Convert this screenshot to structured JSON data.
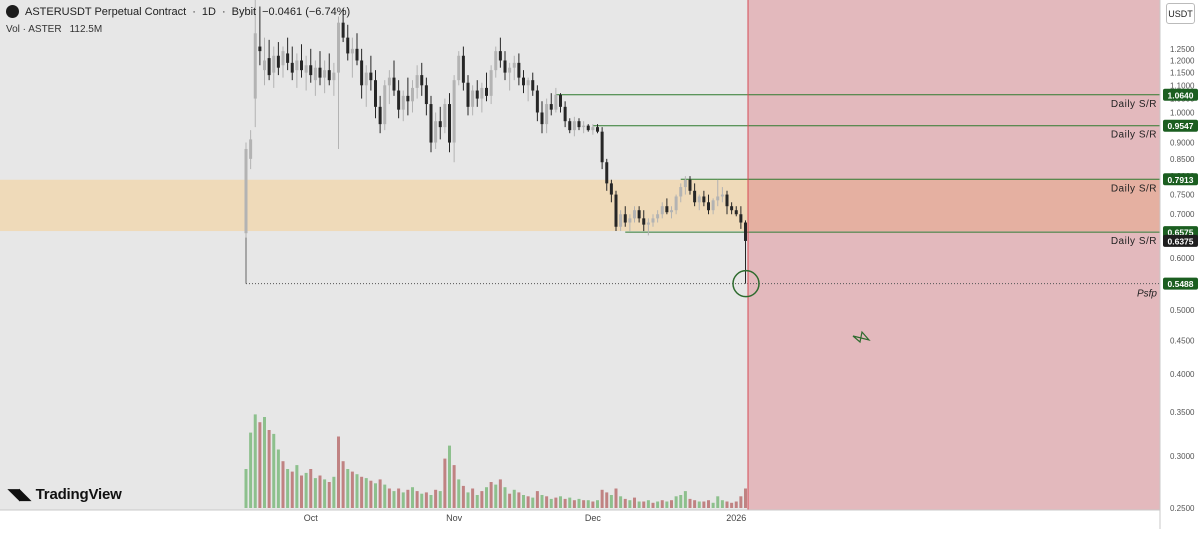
{
  "header": {
    "symbol": "ASTERUSDT Perpetual Contract",
    "interval": "1D",
    "exchange": "Bybit",
    "separator": "·",
    "change": "−0.0461 (−6.74%)"
  },
  "volume_legend": {
    "label": "Vol · ASTER",
    "value": "112.5M"
  },
  "brand": "TradingView",
  "currency_button": "USDT",
  "colors": {
    "up": "#b3b3b3",
    "down": "#262626",
    "vol_up": "#8dc08d",
    "vol_down": "#c08282",
    "zone_fill": "#f0d8b4",
    "future_fill": "#e3b9bd",
    "sr_line": "#2f7a2f",
    "label_bg": "#1b5e20",
    "current_label_bg": "#1e1e1e"
  },
  "chart_data": {
    "type": "candlestick",
    "yscale": "log",
    "ylim": [
      0.25,
      1.4
    ],
    "y_ticks": [
      "1.2500",
      "1.2000",
      "1.1500",
      "1.1000",
      "1.0500",
      "1.0000",
      "0.9500",
      "0.9000",
      "0.8500",
      "0.8000",
      "0.7500",
      "0.7000",
      "0.6500",
      "0.6000",
      "0.5500",
      "0.5000",
      "0.4500",
      "0.4000",
      "0.3500",
      "0.3000",
      "0.2500"
    ],
    "x_ticks": [
      "Oct",
      "Nov",
      "Dec",
      "2026"
    ],
    "x_tick_index": [
      14,
      45,
      75,
      106
    ],
    "candles": [
      [
        0.655,
        0.9,
        0.645,
        0.88
      ],
      [
        0.85,
        0.94,
        0.82,
        0.91
      ],
      [
        1.05,
        1.6,
        0.95,
        1.32
      ],
      [
        1.26,
        1.45,
        1.18,
        1.24
      ],
      [
        1.16,
        1.3,
        1.1,
        1.2
      ],
      [
        1.21,
        1.29,
        1.12,
        1.14
      ],
      [
        1.15,
        1.26,
        1.09,
        1.22
      ],
      [
        1.22,
        1.28,
        1.14,
        1.17
      ],
      [
        1.18,
        1.26,
        1.13,
        1.24
      ],
      [
        1.23,
        1.3,
        1.16,
        1.19
      ],
      [
        1.19,
        1.26,
        1.12,
        1.15
      ],
      [
        1.16,
        1.23,
        1.09,
        1.2
      ],
      [
        1.2,
        1.27,
        1.13,
        1.16
      ],
      [
        1.15,
        1.22,
        1.08,
        1.18
      ],
      [
        1.18,
        1.25,
        1.11,
        1.14
      ],
      [
        1.12,
        1.2,
        1.06,
        1.17
      ],
      [
        1.17,
        1.24,
        1.1,
        1.13
      ],
      [
        1.13,
        1.2,
        1.07,
        1.16
      ],
      [
        1.16,
        1.23,
        1.1,
        1.12
      ],
      [
        1.12,
        1.19,
        1.06,
        1.15
      ],
      [
        1.15,
        1.4,
        0.88,
        1.37
      ],
      [
        1.37,
        1.44,
        1.28,
        1.3
      ],
      [
        1.3,
        1.36,
        1.2,
        1.23
      ],
      [
        1.23,
        1.3,
        1.13,
        1.25
      ],
      [
        1.25,
        1.32,
        1.18,
        1.2
      ],
      [
        1.2,
        1.25,
        1.05,
        1.1
      ],
      [
        1.1,
        1.18,
        1.02,
        1.15
      ],
      [
        1.15,
        1.22,
        1.08,
        1.12
      ],
      [
        1.12,
        1.16,
        0.98,
        1.02
      ],
      [
        1.02,
        1.06,
        0.93,
        0.96
      ],
      [
        0.96,
        1.12,
        0.94,
        1.1
      ],
      [
        1.1,
        1.16,
        1.03,
        1.13
      ],
      [
        1.13,
        1.2,
        1.06,
        1.08
      ],
      [
        1.08,
        1.12,
        0.98,
        1.01
      ],
      [
        1.01,
        1.08,
        0.97,
        1.06
      ],
      [
        1.06,
        1.13,
        0.99,
        1.04
      ],
      [
        1.04,
        1.12,
        1.0,
        1.09
      ],
      [
        1.09,
        1.18,
        1.05,
        1.14
      ],
      [
        1.14,
        1.19,
        1.06,
        1.1
      ],
      [
        1.1,
        1.13,
        0.99,
        1.03
      ],
      [
        1.03,
        1.06,
        0.87,
        0.9
      ],
      [
        0.9,
        1.0,
        0.88,
        0.97
      ],
      [
        0.97,
        1.02,
        0.91,
        0.95
      ],
      [
        0.95,
        1.05,
        0.93,
        1.03
      ],
      [
        1.03,
        1.07,
        0.87,
        0.9
      ],
      [
        0.9,
        1.14,
        0.84,
        1.12
      ],
      [
        1.12,
        1.24,
        1.1,
        1.22
      ],
      [
        1.22,
        1.26,
        1.08,
        1.11
      ],
      [
        1.11,
        1.14,
        0.99,
        1.02
      ],
      [
        1.02,
        1.1,
        0.99,
        1.08
      ],
      [
        1.08,
        1.12,
        1.02,
        1.05
      ],
      [
        1.05,
        1.11,
        1.0,
        1.09
      ],
      [
        1.09,
        1.15,
        1.04,
        1.06
      ],
      [
        1.06,
        1.18,
        1.03,
        1.16
      ],
      [
        1.16,
        1.26,
        1.13,
        1.24
      ],
      [
        1.24,
        1.3,
        1.17,
        1.2
      ],
      [
        1.2,
        1.24,
        1.12,
        1.15
      ],
      [
        1.15,
        1.19,
        1.08,
        1.17
      ],
      [
        1.17,
        1.22,
        1.12,
        1.19
      ],
      [
        1.19,
        1.23,
        1.1,
        1.13
      ],
      [
        1.13,
        1.16,
        1.07,
        1.1
      ],
      [
        1.1,
        1.13,
        1.04,
        1.12
      ],
      [
        1.12,
        1.15,
        1.06,
        1.08
      ],
      [
        1.08,
        1.1,
        0.97,
        1.0
      ],
      [
        1.0,
        1.04,
        0.93,
        0.96
      ],
      [
        0.96,
        1.05,
        0.93,
        1.03
      ],
      [
        1.03,
        1.07,
        0.99,
        1.01
      ],
      [
        1.01,
        1.09,
        1.0,
        1.064
      ],
      [
        1.064,
        1.07,
        1.0,
        1.02
      ],
      [
        1.02,
        1.04,
        0.95,
        0.97
      ],
      [
        0.97,
        0.98,
        0.93,
        0.94
      ],
      [
        0.94,
        0.985,
        0.92,
        0.97
      ],
      [
        0.97,
        0.98,
        0.94,
        0.95
      ],
      [
        0.95,
        0.97,
        0.93,
        0.955
      ],
      [
        0.955,
        0.96,
        0.935,
        0.94
      ],
      [
        0.94,
        0.96,
        0.925,
        0.95
      ],
      [
        0.95,
        0.96,
        0.93,
        0.935
      ],
      [
        0.935,
        0.95,
        0.82,
        0.84
      ],
      [
        0.84,
        0.85,
        0.76,
        0.78
      ],
      [
        0.78,
        0.79,
        0.73,
        0.75
      ],
      [
        0.75,
        0.76,
        0.66,
        0.67
      ],
      [
        0.67,
        0.71,
        0.66,
        0.7
      ],
      [
        0.7,
        0.72,
        0.67,
        0.68
      ],
      [
        0.68,
        0.7,
        0.66,
        0.69
      ],
      [
        0.69,
        0.72,
        0.68,
        0.71
      ],
      [
        0.71,
        0.72,
        0.68,
        0.69
      ],
      [
        0.69,
        0.71,
        0.66,
        0.675
      ],
      [
        0.675,
        0.69,
        0.65,
        0.68
      ],
      [
        0.68,
        0.7,
        0.67,
        0.69
      ],
      [
        0.69,
        0.71,
        0.68,
        0.7
      ],
      [
        0.7,
        0.73,
        0.69,
        0.72
      ],
      [
        0.72,
        0.74,
        0.7,
        0.705
      ],
      [
        0.705,
        0.72,
        0.69,
        0.71
      ],
      [
        0.71,
        0.75,
        0.7,
        0.745
      ],
      [
        0.745,
        0.78,
        0.73,
        0.77
      ],
      [
        0.77,
        0.8,
        0.75,
        0.79
      ],
      [
        0.79,
        0.8,
        0.75,
        0.76
      ],
      [
        0.76,
        0.78,
        0.72,
        0.73
      ],
      [
        0.73,
        0.75,
        0.71,
        0.745
      ],
      [
        0.745,
        0.76,
        0.72,
        0.73
      ],
      [
        0.73,
        0.75,
        0.7,
        0.71
      ],
      [
        0.71,
        0.74,
        0.7,
        0.735
      ],
      [
        0.735,
        0.79,
        0.72,
        0.745
      ],
      [
        0.745,
        0.77,
        0.73,
        0.75
      ],
      [
        0.75,
        0.76,
        0.7,
        0.72
      ],
      [
        0.72,
        0.73,
        0.7,
        0.71
      ],
      [
        0.71,
        0.72,
        0.695,
        0.7
      ],
      [
        0.7,
        0.72,
        0.665,
        0.68
      ],
      [
        0.68,
        0.685,
        0.549,
        0.6375
      ]
    ],
    "volume": [
      [
        0.3,
        1
      ],
      [
        0.58,
        1
      ],
      [
        0.72,
        1
      ],
      [
        0.66,
        0
      ],
      [
        0.7,
        1
      ],
      [
        0.6,
        0
      ],
      [
        0.57,
        1
      ],
      [
        0.45,
        1
      ],
      [
        0.36,
        0
      ],
      [
        0.3,
        1
      ],
      [
        0.28,
        0
      ],
      [
        0.33,
        1
      ],
      [
        0.25,
        0
      ],
      [
        0.27,
        1
      ],
      [
        0.3,
        0
      ],
      [
        0.23,
        1
      ],
      [
        0.25,
        0
      ],
      [
        0.22,
        1
      ],
      [
        0.2,
        0
      ],
      [
        0.24,
        1
      ],
      [
        0.55,
        0
      ],
      [
        0.36,
        0
      ],
      [
        0.3,
        1
      ],
      [
        0.28,
        0
      ],
      [
        0.26,
        1
      ],
      [
        0.24,
        0
      ],
      [
        0.23,
        1
      ],
      [
        0.21,
        0
      ],
      [
        0.19,
        1
      ],
      [
        0.22,
        0
      ],
      [
        0.18,
        1
      ],
      [
        0.15,
        0
      ],
      [
        0.13,
        1
      ],
      [
        0.15,
        0
      ],
      [
        0.12,
        1
      ],
      [
        0.14,
        0
      ],
      [
        0.16,
        1
      ],
      [
        0.13,
        0
      ],
      [
        0.11,
        1
      ],
      [
        0.12,
        0
      ],
      [
        0.1,
        1
      ],
      [
        0.14,
        0
      ],
      [
        0.13,
        1
      ],
      [
        0.38,
        0
      ],
      [
        0.48,
        1
      ],
      [
        0.33,
        0
      ],
      [
        0.22,
        1
      ],
      [
        0.17,
        0
      ],
      [
        0.12,
        1
      ],
      [
        0.15,
        0
      ],
      [
        0.1,
        1
      ],
      [
        0.13,
        0
      ],
      [
        0.16,
        1
      ],
      [
        0.2,
        0
      ],
      [
        0.18,
        1
      ],
      [
        0.22,
        0
      ],
      [
        0.16,
        1
      ],
      [
        0.11,
        0
      ],
      [
        0.14,
        1
      ],
      [
        0.12,
        0
      ],
      [
        0.1,
        1
      ],
      [
        0.09,
        0
      ],
      [
        0.08,
        1
      ],
      [
        0.13,
        0
      ],
      [
        0.1,
        1
      ],
      [
        0.09,
        0
      ],
      [
        0.07,
        1
      ],
      [
        0.08,
        0
      ],
      [
        0.09,
        1
      ],
      [
        0.07,
        0
      ],
      [
        0.08,
        1
      ],
      [
        0.06,
        0
      ],
      [
        0.07,
        1
      ],
      [
        0.06,
        0
      ],
      [
        0.06,
        1
      ],
      [
        0.05,
        0
      ],
      [
        0.06,
        1
      ],
      [
        0.14,
        0
      ],
      [
        0.12,
        0
      ],
      [
        0.1,
        1
      ],
      [
        0.15,
        0
      ],
      [
        0.09,
        1
      ],
      [
        0.07,
        0
      ],
      [
        0.06,
        1
      ],
      [
        0.08,
        0
      ],
      [
        0.05,
        1
      ],
      [
        0.05,
        0
      ],
      [
        0.06,
        1
      ],
      [
        0.04,
        0
      ],
      [
        0.05,
        1
      ],
      [
        0.06,
        0
      ],
      [
        0.05,
        1
      ],
      [
        0.06,
        0
      ],
      [
        0.09,
        1
      ],
      [
        0.1,
        1
      ],
      [
        0.13,
        1
      ],
      [
        0.07,
        0
      ],
      [
        0.06,
        0
      ],
      [
        0.05,
        1
      ],
      [
        0.05,
        0
      ],
      [
        0.06,
        0
      ],
      [
        0.04,
        1
      ],
      [
        0.09,
        1
      ],
      [
        0.06,
        1
      ],
      [
        0.05,
        0
      ],
      [
        0.04,
        0
      ],
      [
        0.05,
        0
      ],
      [
        0.09,
        0
      ],
      [
        0.15,
        0
      ]
    ],
    "zone": [
      0.66,
      0.79
    ],
    "levels": [
      {
        "value": 1.064,
        "price_label": "1.0640",
        "text": "Daily S/R",
        "start_index": 67
      },
      {
        "value": 0.9547,
        "price_label": "0.9547",
        "text": "Daily S/R",
        "start_index": 75
      },
      {
        "value": 0.7913,
        "price_label": "0.7913",
        "text": "Daily S/R",
        "start_index": 94
      },
      {
        "value": 0.6575,
        "price_label": "0.6575",
        "text": "Daily S/R",
        "start_index": 82
      }
    ],
    "current_price": {
      "value": 0.6375,
      "label": "0.6375"
    },
    "psfp": {
      "value": 0.5488,
      "label": "0.5488",
      "text": "Psfp",
      "start_index": 0
    }
  }
}
